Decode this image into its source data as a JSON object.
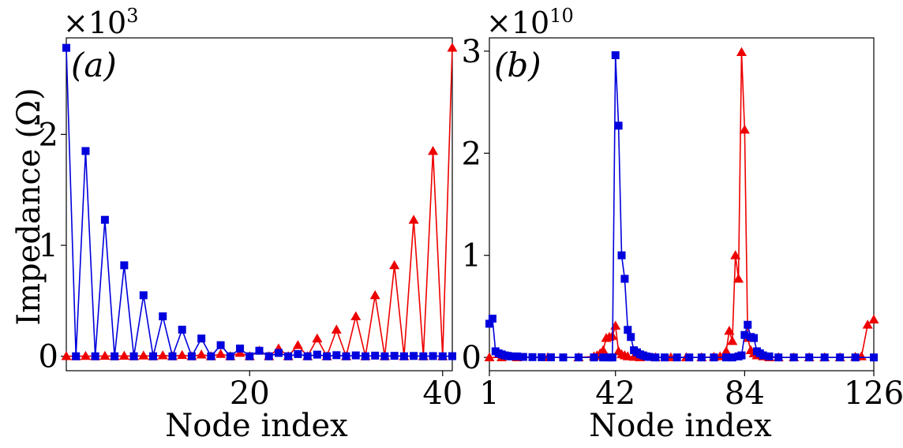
{
  "ylabel": "Impedance (Ω)",
  "chart_data": [
    {
      "type": "line",
      "panel_label": "(a)",
      "xlabel": "Node index",
      "multiplier": {
        "base": "×10",
        "exp": "3"
      },
      "xlim": [
        1,
        41
      ],
      "ylim": [
        -0.13,
        2.87
      ],
      "xticks": [
        20,
        40
      ],
      "yticks": [
        0,
        1,
        2
      ],
      "series": [
        {
          "name": "blue",
          "color": "#0000dd",
          "marker": "square",
          "x": [
            1,
            2,
            3,
            4,
            5,
            6,
            7,
            8,
            9,
            10,
            11,
            12,
            13,
            14,
            15,
            16,
            17,
            18,
            19,
            20,
            21,
            22,
            23,
            24,
            25,
            26,
            27,
            28,
            29,
            30,
            31,
            32,
            33,
            34,
            35,
            36,
            37,
            38,
            39,
            40,
            41
          ],
          "y": [
            2.78,
            0,
            1.85,
            0,
            1.23,
            0,
            0.82,
            0,
            0.55,
            0,
            0.36,
            0,
            0.24,
            0,
            0.16,
            0,
            0.1,
            0,
            0.07,
            0,
            0.05,
            0,
            0.03,
            0,
            0.02,
            0,
            0.015,
            0,
            0.01,
            0,
            0.008,
            0,
            0.006,
            0,
            0.004,
            0,
            0.003,
            0,
            0.002,
            0,
            0.001
          ]
        },
        {
          "name": "red",
          "color": "#ee0000",
          "marker": "triangle",
          "x": [
            1,
            2,
            3,
            4,
            5,
            6,
            7,
            8,
            9,
            10,
            11,
            12,
            13,
            14,
            15,
            16,
            17,
            18,
            19,
            20,
            21,
            22,
            23,
            24,
            25,
            26,
            27,
            28,
            29,
            30,
            31,
            32,
            33,
            34,
            35,
            36,
            37,
            38,
            39,
            40,
            41
          ],
          "y": [
            0.001,
            0,
            0.002,
            0,
            0.003,
            0,
            0.004,
            0,
            0.006,
            0,
            0.008,
            0,
            0.01,
            0,
            0.015,
            0,
            0.02,
            0,
            0.03,
            0,
            0.05,
            0,
            0.07,
            0,
            0.1,
            0,
            0.16,
            0,
            0.24,
            0,
            0.36,
            0,
            0.55,
            0,
            0.82,
            0,
            1.23,
            0,
            1.85,
            0,
            2.78
          ]
        }
      ]
    },
    {
      "type": "line",
      "panel_label": "(b)",
      "xlabel": "Node index",
      "multiplier": {
        "base": "×10",
        "exp": "10"
      },
      "xlim": [
        1,
        126
      ],
      "ylim": [
        -0.13,
        3.13
      ],
      "xticks": [
        1,
        42,
        84,
        126
      ],
      "yticks": [
        0,
        1,
        2,
        3
      ],
      "series": [
        {
          "name": "blue",
          "color": "#0000dd",
          "marker": "square",
          "x": [
            1,
            2,
            3,
            4,
            5,
            6,
            7,
            8,
            10,
            12,
            15,
            18,
            21,
            25,
            30,
            35,
            38,
            40,
            41,
            42,
            43,
            44,
            45,
            46,
            47,
            48,
            49,
            50,
            51,
            52,
            53,
            55,
            58,
            62,
            66,
            70,
            74,
            78,
            80,
            82,
            83,
            84,
            85,
            86,
            87,
            88,
            89,
            90,
            92,
            95,
            100,
            105,
            110,
            115,
            120,
            126
          ],
          "y": [
            0.33,
            0.38,
            0.06,
            0.04,
            0.03,
            0.02,
            0.015,
            0.01,
            0.01,
            0.005,
            0.003,
            0.002,
            0.001,
            0,
            0,
            0,
            0,
            0,
            0,
            2.96,
            2.27,
            1.0,
            0.77,
            0.27,
            0.2,
            0.07,
            0.05,
            0.03,
            0.02,
            0.01,
            0.005,
            0,
            0,
            0,
            0,
            0,
            0,
            0,
            0,
            0.01,
            0.02,
            0.22,
            0.32,
            0.2,
            0.19,
            0.06,
            0.04,
            0.02,
            0.01,
            0,
            0,
            0,
            0,
            0,
            0,
            0
          ]
        },
        {
          "name": "red",
          "color": "#ee0000",
          "marker": "triangle",
          "x": [
            1,
            5,
            10,
            20,
            30,
            35,
            36,
            37,
            38,
            39,
            40,
            41,
            42,
            43,
            44,
            45,
            46,
            48,
            50,
            55,
            60,
            65,
            70,
            74,
            76,
            78,
            79,
            80,
            81,
            82,
            83,
            84,
            85,
            86,
            87,
            88,
            90,
            92,
            95,
            100,
            105,
            110,
            115,
            120,
            122,
            124,
            126
          ],
          "y": [
            0,
            0,
            0,
            0,
            0,
            0.01,
            0.02,
            0.04,
            0.07,
            0.19,
            0.2,
            0.21,
            0.31,
            0.06,
            0.03,
            0.02,
            0.01,
            0.005,
            0,
            0,
            0,
            0,
            0,
            0.005,
            0.01,
            0.06,
            0.26,
            0.16,
            1.0,
            0.77,
            2.99,
            2.23,
            0.19,
            0.07,
            0.04,
            0.02,
            0.01,
            0,
            0,
            0,
            0,
            0,
            0,
            0.005,
            0.01,
            0.32,
            0.37
          ]
        }
      ]
    }
  ]
}
